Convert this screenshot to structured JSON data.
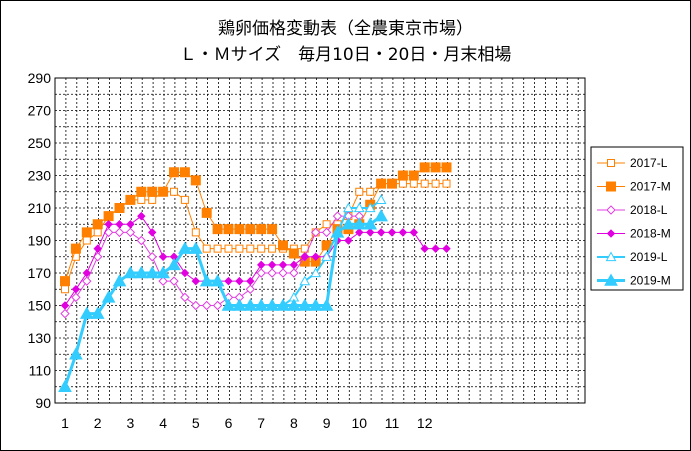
{
  "chart_data": {
    "type": "line",
    "title": "鶏卵価格変動表（全農東京市場）",
    "subtitle": "Ｌ・Ｍサイズ　毎月10日・20日・月末相場",
    "ylim": [
      90,
      290
    ],
    "yticks": [
      90,
      110,
      130,
      150,
      170,
      190,
      210,
      230,
      250,
      270,
      290
    ],
    "xticks": [
      "1",
      "2",
      "3",
      "4",
      "5",
      "6",
      "7",
      "8",
      "9",
      "10",
      "11",
      "12"
    ],
    "grid": true,
    "legend_position": "right",
    "series": [
      {
        "name": "2017-L",
        "color": "#ff8000",
        "marker": "square-open",
        "lineWidth": 1,
        "values": [
          160,
          180,
          190,
          195,
          205,
          210,
          215,
          215,
          215,
          220,
          220,
          215,
          195,
          185,
          185,
          185,
          185,
          185,
          185,
          185,
          185,
          185,
          185,
          195,
          200,
          200,
          205,
          220,
          220,
          225,
          225,
          225,
          225,
          225,
          225,
          225
        ]
      },
      {
        "name": "2017-M",
        "color": "#ff8000",
        "marker": "square-filled",
        "lineWidth": 1,
        "values": [
          165,
          185,
          195,
          200,
          205,
          210,
          215,
          220,
          220,
          220,
          232,
          232,
          227,
          207,
          197,
          197,
          197,
          197,
          197,
          197,
          187,
          182,
          177,
          177,
          187,
          197,
          197,
          200,
          212,
          225,
          225,
          230,
          230,
          235,
          235,
          235
        ]
      },
      {
        "name": "2018-L",
        "color": "#e040e0",
        "marker": "diamond-open",
        "lineWidth": 1,
        "values": [
          145,
          155,
          165,
          180,
          195,
          195,
          195,
          190,
          180,
          165,
          165,
          155,
          150,
          150,
          150,
          155,
          155,
          160,
          170,
          170,
          170,
          170,
          180,
          195,
          195,
          205,
          205,
          205
        ]
      },
      {
        "name": "2018-M",
        "color": "#e000e0",
        "marker": "diamond-filled",
        "lineWidth": 1,
        "values": [
          150,
          160,
          170,
          185,
          200,
          200,
          200,
          205,
          195,
          180,
          180,
          170,
          165,
          165,
          165,
          165,
          165,
          165,
          175,
          175,
          175,
          175,
          180,
          180,
          180,
          190,
          190,
          195,
          195,
          195,
          195,
          195,
          195,
          185,
          185,
          185
        ]
      },
      {
        "name": "2019-L",
        "color": "#33ccff",
        "marker": "triangle-open",
        "lineWidth": 2,
        "values": [
          100,
          120,
          145,
          145,
          155,
          165,
          170,
          170,
          170,
          170,
          175,
          185,
          185,
          165,
          165,
          150,
          150,
          150,
          150,
          150,
          150,
          155,
          165,
          170,
          180,
          195,
          210,
          210,
          210,
          215
        ]
      },
      {
        "name": "2019-M",
        "color": "#33ccff",
        "marker": "triangle-filled",
        "lineWidth": 3,
        "values": [
          100,
          120,
          145,
          145,
          155,
          165,
          170,
          170,
          170,
          170,
          175,
          185,
          185,
          165,
          165,
          150,
          150,
          150,
          150,
          150,
          150,
          150,
          150,
          150,
          150,
          195,
          200,
          200,
          200,
          205
        ]
      }
    ]
  }
}
